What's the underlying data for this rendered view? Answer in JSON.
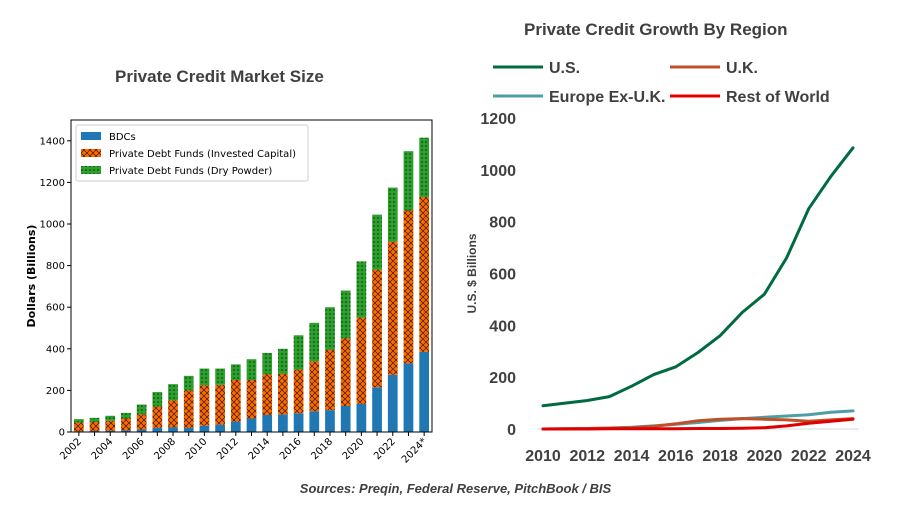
{
  "left": {
    "title": "Private Credit Market Size"
  },
  "right": {
    "title": "Private Credit Growth By Region"
  },
  "source": "Sources: Preqin, Federal Reserve, PitchBook / BIS",
  "colors": {
    "bdcs": "#1f77b4",
    "invested": "#ff6a00",
    "dry_powder": "#2ca02c",
    "us": "#006b40",
    "uk": "#c0502a",
    "europe": "#4f9ea5",
    "row": "#e00000"
  },
  "chart_data": [
    {
      "type": "bar",
      "stacked": true,
      "title": "Private Credit Market Size",
      "xlabel": "",
      "ylabel": "Dollars (Billions)",
      "ylim": [
        0,
        1500
      ],
      "yticks": [
        0,
        200,
        400,
        600,
        800,
        1000,
        1200,
        1400
      ],
      "categories": [
        "2002",
        "2003",
        "2004",
        "2005",
        "2006",
        "2007",
        "2008",
        "2009",
        "2010",
        "2011",
        "2012",
        "2013",
        "2014",
        "2015",
        "2016",
        "2017",
        "2018",
        "2019",
        "2020",
        "2021",
        "2022",
        "2023",
        "2024*"
      ],
      "xtick_labels": [
        "2002",
        "",
        "2004",
        "",
        "2006",
        "",
        "2008",
        "",
        "2010",
        "",
        "2012",
        "",
        "2014",
        "",
        "2016",
        "",
        "2018",
        "",
        "2020",
        "",
        "2022",
        "",
        "2024*"
      ],
      "legend_position": "top-left",
      "series": [
        {
          "name": "BDCs",
          "values": [
            4,
            5,
            6,
            8,
            12,
            20,
            22,
            20,
            30,
            35,
            50,
            65,
            82,
            85,
            90,
            100,
            105,
            125,
            135,
            215,
            275,
            330,
            385
          ]
        },
        {
          "name": "Private Debt Funds (Invested Capital)",
          "values": [
            41,
            43,
            48,
            57,
            73,
            102,
            130,
            180,
            195,
            192,
            200,
            185,
            195,
            195,
            210,
            240,
            290,
            325,
            415,
            565,
            640,
            735,
            745
          ]
        },
        {
          "name": "Private Debt Funds (Dry Powder)",
          "values": [
            17,
            20,
            24,
            27,
            47,
            70,
            78,
            70,
            80,
            78,
            75,
            100,
            103,
            120,
            165,
            185,
            205,
            230,
            270,
            265,
            260,
            285,
            285
          ]
        }
      ]
    },
    {
      "type": "line",
      "title": "Private Credit Growth By Region",
      "xlabel": "",
      "ylabel": "U.S. $ Billions",
      "xlim": [
        2010,
        2024
      ],
      "ylim": [
        0,
        1200
      ],
      "xticks": [
        2010,
        2012,
        2014,
        2016,
        2018,
        2020,
        2022,
        2024
      ],
      "yticks": [
        0,
        200,
        400,
        600,
        800,
        1000,
        1200
      ],
      "legend_position": "top",
      "x": [
        2010,
        2011,
        2012,
        2013,
        2014,
        2015,
        2016,
        2017,
        2018,
        2019,
        2020,
        2021,
        2022,
        2023,
        2024
      ],
      "series": [
        {
          "name": "U.S.",
          "values": [
            90,
            100,
            110,
            125,
            165,
            210,
            240,
            295,
            360,
            450,
            520,
            660,
            850,
            975,
            1085
          ]
        },
        {
          "name": "U.K.",
          "values": [
            0,
            1,
            2,
            3,
            5,
            10,
            20,
            32,
            38,
            40,
            38,
            35,
            30,
            35,
            40
          ]
        },
        {
          "name": "Europe Ex-U.K.",
          "values": [
            0,
            1,
            2,
            4,
            7,
            12,
            18,
            25,
            33,
            40,
            45,
            50,
            55,
            65,
            70
          ]
        },
        {
          "name": "Rest of World",
          "values": [
            0,
            0,
            0,
            1,
            1,
            1,
            1,
            2,
            2,
            3,
            5,
            12,
            22,
            30,
            38
          ]
        }
      ]
    }
  ]
}
